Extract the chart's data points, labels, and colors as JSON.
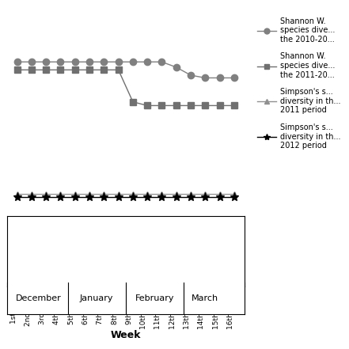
{
  "weeks": [
    "1st Week",
    "2nd Week",
    "3rd Week",
    "4th Week",
    "5th Week",
    "6th Week",
    "7th Week",
    "8th Week",
    "9th Week",
    "10th Week",
    "11th Week",
    "12th Week",
    "13th Week",
    "14th Week",
    "15th Week",
    "16th Week"
  ],
  "month_labels": [
    "December",
    "January",
    "February",
    "March"
  ],
  "month_boundaries": [
    0.5,
    4.5,
    8.5,
    12.5,
    16.5
  ],
  "month_centers": [
    2.5,
    6.5,
    10.5,
    14.0
  ],
  "shannon_2010_2011": [
    2.6,
    2.6,
    2.6,
    2.6,
    2.6,
    2.6,
    2.6,
    2.6,
    2.6,
    2.6,
    2.6,
    2.5,
    2.35,
    2.3,
    2.3,
    2.3
  ],
  "shannon_2011_2012": [
    2.45,
    2.45,
    2.45,
    2.45,
    2.45,
    2.45,
    2.45,
    2.45,
    1.85,
    1.78,
    1.78,
    1.78,
    1.78,
    1.78,
    1.78,
    1.78
  ],
  "simpson_2011": [
    0.12,
    0.12,
    0.12,
    0.12,
    0.12,
    0.12,
    0.12,
    0.12,
    0.12,
    0.12,
    0.12,
    0.12,
    0.12,
    0.12,
    0.12,
    0.12
  ],
  "simpson_2012": [
    0.07,
    0.07,
    0.07,
    0.07,
    0.07,
    0.07,
    0.07,
    0.07,
    0.07,
    0.07,
    0.07,
    0.07,
    0.07,
    0.07,
    0.07,
    0.07
  ],
  "color_shannon_1": "#808080",
  "color_shannon_2": "#707070",
  "color_simpson_1": "#909090",
  "color_simpson_2": "#000000",
  "xlabel": "Week",
  "ylim": [
    -0.3,
    3.5
  ],
  "xlim": [
    0.3,
    16.7
  ],
  "figsize": [
    4.41,
    4.41
  ],
  "dpi": 100
}
